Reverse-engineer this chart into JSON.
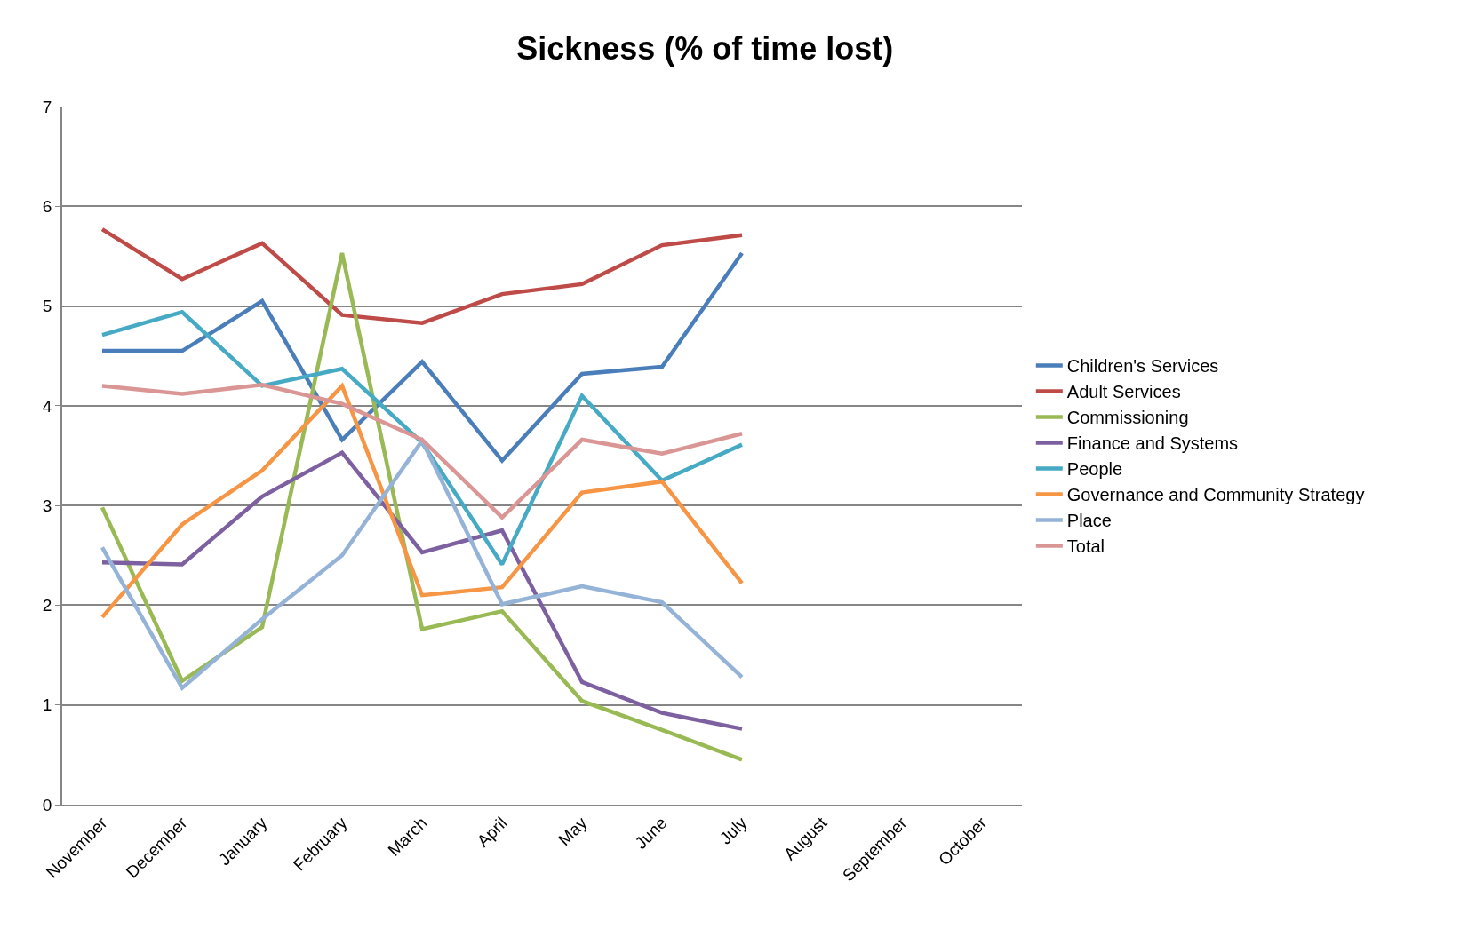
{
  "chart_data": {
    "type": "line",
    "title": "Sickness (% of time lost)",
    "categories": [
      "November",
      "December",
      "January",
      "February",
      "March",
      "April",
      "May",
      "June",
      "July",
      "August",
      "September",
      "October"
    ],
    "series": [
      {
        "name": "Children's Services",
        "color": "#4a7ebb",
        "values": [
          4.55,
          4.55,
          5.05,
          3.66,
          4.44,
          3.45,
          4.32,
          4.39,
          5.53,
          null,
          null,
          null
        ]
      },
      {
        "name": "Adult Services",
        "color": "#be4b48",
        "values": [
          5.77,
          5.27,
          5.63,
          4.91,
          4.83,
          5.12,
          5.22,
          5.61,
          5.71,
          null,
          null,
          null
        ]
      },
      {
        "name": "Commissioning",
        "color": "#98b954",
        "values": [
          2.98,
          1.24,
          1.78,
          5.53,
          1.76,
          1.94,
          1.04,
          0.75,
          0.45,
          null,
          null,
          null
        ]
      },
      {
        "name": "Finance and Systems",
        "color": "#7d60a0",
        "values": [
          2.43,
          2.41,
          3.09,
          3.53,
          2.53,
          2.75,
          1.23,
          0.92,
          0.76,
          null,
          null,
          null
        ]
      },
      {
        "name": "People",
        "color": "#46aac5",
        "values": [
          4.71,
          4.94,
          4.2,
          4.37,
          3.63,
          2.41,
          4.1,
          3.25,
          3.61,
          null,
          null,
          null
        ]
      },
      {
        "name": "Governance and Community Strategy",
        "color": "#f69544",
        "values": [
          1.88,
          2.81,
          3.35,
          4.2,
          2.1,
          2.18,
          3.13,
          3.24,
          2.22,
          null,
          null,
          null
        ]
      },
      {
        "name": "Place",
        "color": "#95b3d7",
        "values": [
          2.58,
          1.17,
          1.86,
          2.5,
          3.65,
          2.01,
          2.19,
          2.03,
          1.28,
          null,
          null,
          null
        ]
      },
      {
        "name": "Total",
        "color": "#d99694",
        "values": [
          4.2,
          4.12,
          4.21,
          4.02,
          3.66,
          2.88,
          3.66,
          3.52,
          3.72,
          null,
          null,
          null
        ]
      }
    ],
    "ylim": [
      0,
      7
    ],
    "yticks": [
      0,
      1,
      2,
      3,
      4,
      5,
      6,
      7
    ],
    "grid": "y",
    "legend": "right",
    "marker": "none",
    "line_style": "solid"
  }
}
